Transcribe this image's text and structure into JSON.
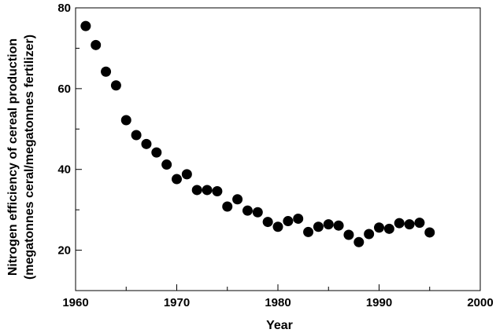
{
  "chart_data": {
    "type": "scatter",
    "title": "",
    "xlabel": "Year",
    "ylabel_line1": "Nitrogen efficiency of cereal production",
    "ylabel_line2": "(megatonnes ceral/megatonnes fertilizer)",
    "xlim": [
      1960,
      2000
    ],
    "ylim": [
      10,
      80
    ],
    "x_ticks": [
      1960,
      1970,
      1980,
      1990,
      2000
    ],
    "y_ticks": [
      20,
      40,
      60,
      80
    ],
    "grid": false,
    "legend": "none",
    "marker_color": "#000000",
    "series": [
      {
        "x": [
          1961,
          1962,
          1963,
          1964,
          1965,
          1966,
          1967,
          1968,
          1969,
          1970,
          1971,
          1972,
          1973,
          1974,
          1975,
          1976,
          1977,
          1978,
          1979,
          1980,
          1981,
          1982,
          1983,
          1984,
          1985,
          1986,
          1987,
          1988,
          1989,
          1990,
          1991,
          1992,
          1993,
          1994,
          1995
        ],
        "y": [
          75.5,
          70.8,
          64.2,
          60.8,
          52.2,
          48.5,
          46.3,
          44.2,
          41.2,
          37.6,
          38.8,
          34.9,
          34.9,
          34.6,
          30.8,
          32.6,
          29.8,
          29.4,
          27.0,
          25.8,
          27.2,
          27.8,
          24.5,
          25.8,
          26.4,
          26.1,
          23.8,
          22.0,
          24.0,
          25.6,
          25.3,
          26.7,
          26.4,
          26.8,
          24.4
        ]
      }
    ]
  }
}
